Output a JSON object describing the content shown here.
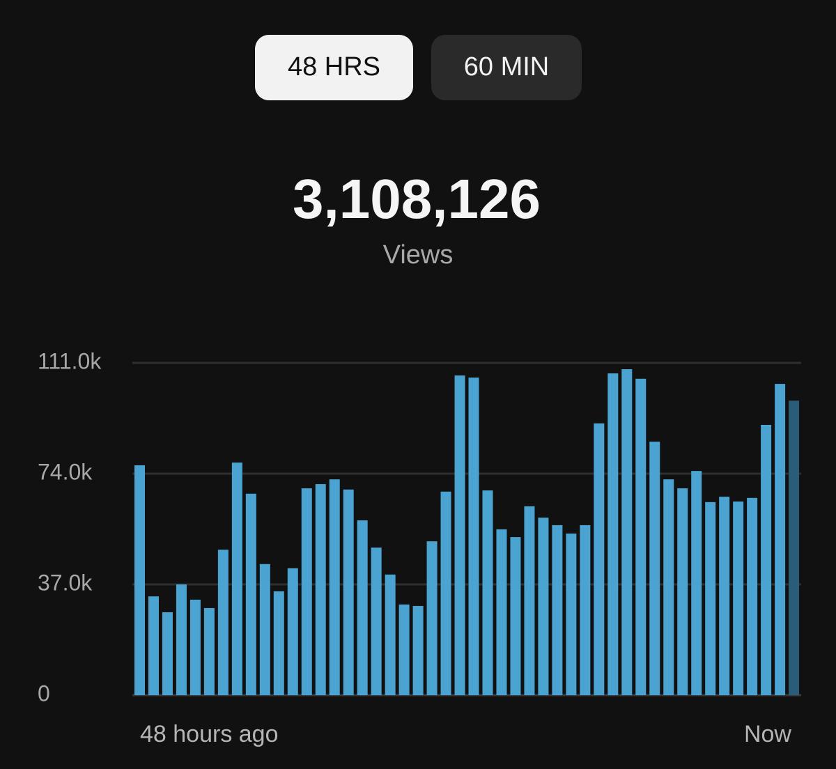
{
  "chart_data": {
    "type": "bar",
    "tabs": [
      "48 HRS",
      "60 MIN"
    ],
    "active_tab": 0,
    "total": "3,108,126",
    "total_label": "Views",
    "x_labels": [
      "48 hours ago",
      "Now"
    ],
    "ylim": [
      0,
      111000
    ],
    "yticks": [
      0,
      {
        "value": 37000,
        "label": "37.0k"
      },
      {
        "value": 74000,
        "label": "74.0k"
      },
      {
        "value": 111000,
        "label": "111.0k"
      }
    ],
    "grid": true,
    "values": [
      76800,
      33000,
      27700,
      37000,
      31900,
      29100,
      48600,
      77700,
      67300,
      43800,
      34700,
      42400,
      69100,
      70500,
      72100,
      68700,
      58400,
      49300,
      40300,
      30300,
      29800,
      51400,
      68000,
      106800,
      106100,
      68400,
      55400,
      52800,
      63100,
      59300,
      56800,
      54000,
      56800,
      90800,
      107500,
      108900,
      105700,
      84700,
      72100,
      69100,
      74900,
      64500,
      66300,
      64700,
      65900,
      90300,
      104000,
      98400
    ],
    "colors": [
      "#4aa3d0",
      "#4aa3d0",
      "#4aa3d0",
      "#4aa3d0",
      "#4aa3d0",
      "#4aa3d0",
      "#4aa3d0",
      "#4aa3d0",
      "#4aa3d0",
      "#4aa3d0",
      "#4aa3d0",
      "#4aa3d0",
      "#4aa3d0",
      "#4aa3d0",
      "#4aa3d0",
      "#4aa3d0",
      "#4aa3d0",
      "#4aa3d0",
      "#4aa3d0",
      "#4aa3d0",
      "#4aa3d0",
      "#4aa3d0",
      "#4aa3d0",
      "#4aa3d0",
      "#4aa3d0",
      "#4aa3d0",
      "#4aa3d0",
      "#4aa3d0",
      "#4aa3d0",
      "#4aa3d0",
      "#4aa3d0",
      "#4aa3d0",
      "#4aa3d0",
      "#4aa3d0",
      "#4aa3d0",
      "#4aa3d0",
      "#4aa3d0",
      "#4aa3d0",
      "#4aa3d0",
      "#4aa3d0",
      "#4aa3d0",
      "#4aa3d0",
      "#4aa3d0",
      "#4aa3d0",
      "#4aa3d0",
      "#4aa3d0",
      "#4aa3d0",
      "#2b5d78"
    ]
  }
}
